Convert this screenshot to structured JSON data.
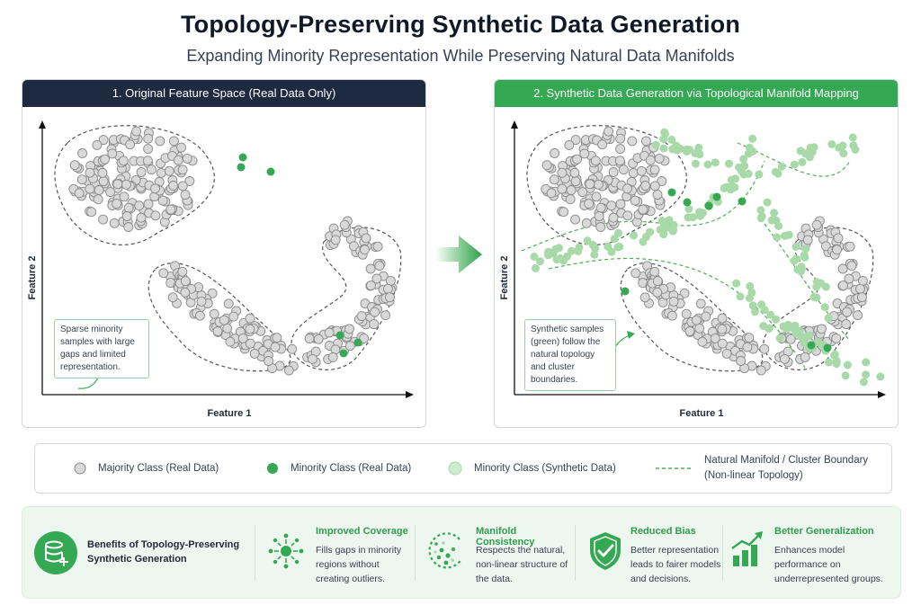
{
  "header": {
    "title": "Topology-Preserving Synthetic Data Generation",
    "subtitle": "Expanding Minority Representation While Preserving Natural Data Manifolds"
  },
  "panels": {
    "left": {
      "title": "1. Original Feature Space (Real Data Only)",
      "x_label": "Feature 1",
      "y_label": "Feature 2",
      "callout": "Sparse minority samples with large gaps and limited representation."
    },
    "right": {
      "title": "2. Synthetic Data Generation via Topological Manifold Mapping",
      "x_label": "Feature 1",
      "y_label": "Feature 2",
      "callout": "Synthetic samples (green) follow the natural topology and cluster boundaries."
    }
  },
  "legend": {
    "majority": "Majority Class (Real Data)",
    "minority_real": "Minority Class (Real Data)",
    "minority_synthetic": "Minority Class (Synthetic Data)",
    "boundary_line1": "Natural Manifold / Cluster Boundary",
    "boundary_line2": "(Non-linear Topology)"
  },
  "benefits": {
    "heading_line1": "Benefits of Topology-Preserving",
    "heading_line2": "Synthetic Generation",
    "items": [
      {
        "title": "Improved Coverage",
        "lines": [
          "Fills gaps in minority",
          "regions without",
          "creating outliers."
        ]
      },
      {
        "title": "Manifold Consistency",
        "lines": [
          "Respects the natural,",
          "non-linear structure of",
          "the data."
        ]
      },
      {
        "title": "Reduced Bias",
        "lines": [
          "Better representation",
          "leads to fairer models",
          "and decisions."
        ]
      },
      {
        "title": "Better Generalization",
        "lines": [
          "Enhances model",
          "performance on",
          "underrepresented groups."
        ]
      }
    ]
  },
  "colors": {
    "majority_fill": "#d9d9d9",
    "majority_stroke": "#8a8a8a",
    "minority_real": "#34a853",
    "minority_synthetic": "#a8d9a8",
    "boundary": "#4caf50",
    "dark_header": "#1e2a40",
    "green_header": "#34a853"
  }
}
